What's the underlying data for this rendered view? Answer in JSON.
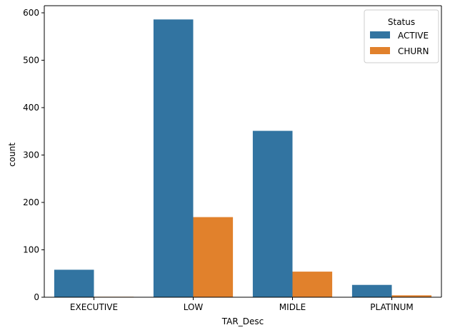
{
  "chart_data": {
    "type": "bar",
    "title": "",
    "xlabel": "TAR_Desc",
    "ylabel": "count",
    "categories": [
      "EXECUTIVE",
      "LOW",
      "MIDLE",
      "PLATINUM"
    ],
    "series": [
      {
        "name": "ACTIVE",
        "values": [
          58,
          586,
          351,
          26
        ],
        "color": "#3274a1"
      },
      {
        "name": "CHURN",
        "values": [
          1,
          169,
          54,
          4
        ],
        "color": "#e1812c"
      }
    ],
    "ylim": [
      0,
      615
    ],
    "yticks": [
      0,
      100,
      200,
      300,
      400,
      500,
      600
    ],
    "grid": false,
    "legend": {
      "title": "Status",
      "placement": "top-right"
    }
  }
}
